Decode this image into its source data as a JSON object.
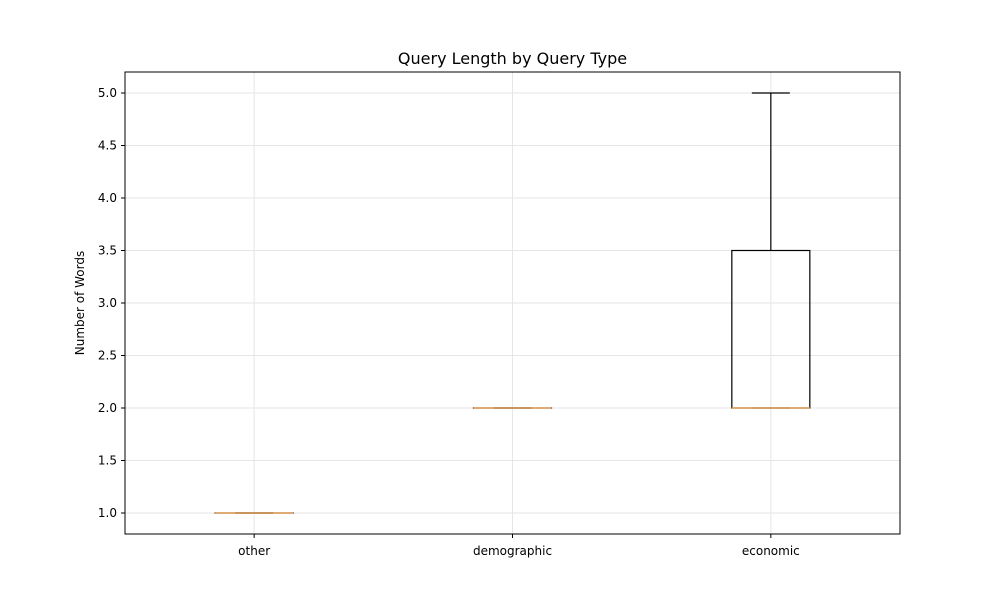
{
  "chart_data": {
    "type": "box",
    "title": "Query Length by Query Type",
    "xlabel": "",
    "ylabel": "Number of Words",
    "categories": [
      "other",
      "demographic",
      "economic"
    ],
    "boxes": [
      {
        "category": "other",
        "whisker_low": 1.0,
        "q1": 1.0,
        "median": 1.0,
        "q3": 1.0,
        "whisker_high": 1.0
      },
      {
        "category": "demographic",
        "whisker_low": 2.0,
        "q1": 2.0,
        "median": 2.0,
        "q3": 2.0,
        "whisker_high": 2.0
      },
      {
        "category": "economic",
        "whisker_low": 2.0,
        "q1": 2.0,
        "median": 2.0,
        "q3": 3.5,
        "whisker_high": 5.0
      }
    ],
    "ylim": [
      0.8,
      5.2
    ],
    "yticks": [
      "1.0",
      "1.5",
      "2.0",
      "2.5",
      "3.0",
      "3.5",
      "4.0",
      "4.5",
      "5.0"
    ],
    "grid": true,
    "colors": {
      "box": "#000000",
      "median": "#e8a05a",
      "grid": "#e6e6e6"
    }
  }
}
